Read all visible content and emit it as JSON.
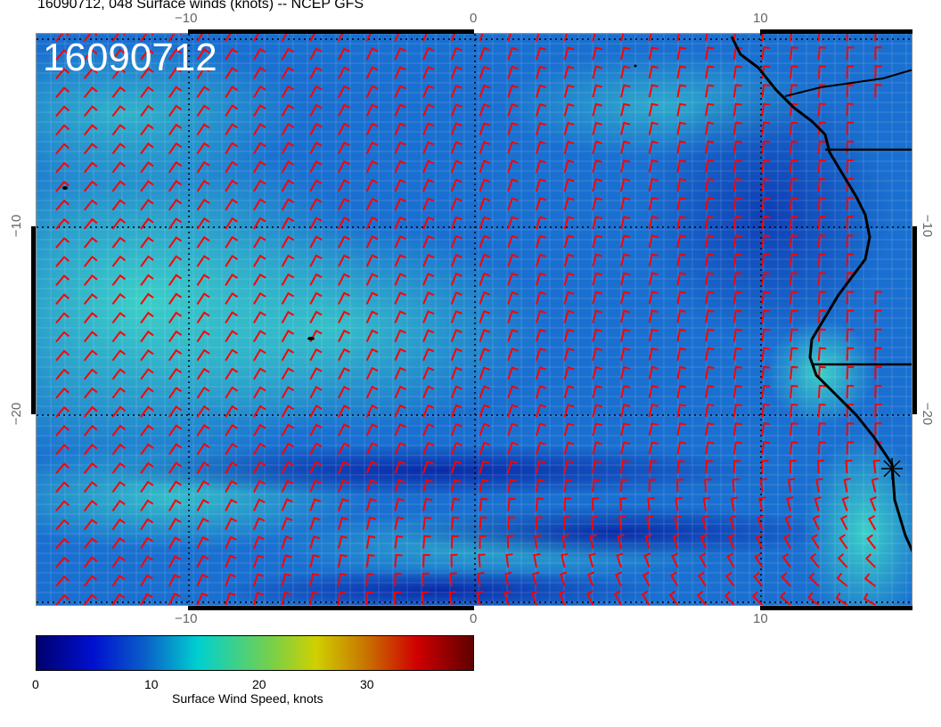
{
  "title": "16090712, 048 Surface winds (knots) -- NCEP GFS",
  "stamp": "16090712",
  "lon_ticks": [
    "−10",
    "0",
    "10"
  ],
  "lat_ticks": [
    "−10",
    "−20"
  ],
  "colorbar": {
    "label": "Surface Wind Speed, knots",
    "ticks": [
      "0",
      "10",
      "20",
      "30"
    ],
    "range": [
      0,
      37
    ]
  },
  "colors": {
    "barb": "#ff0000",
    "coast": "#000000",
    "ocean": "#1a5fd0"
  }
}
